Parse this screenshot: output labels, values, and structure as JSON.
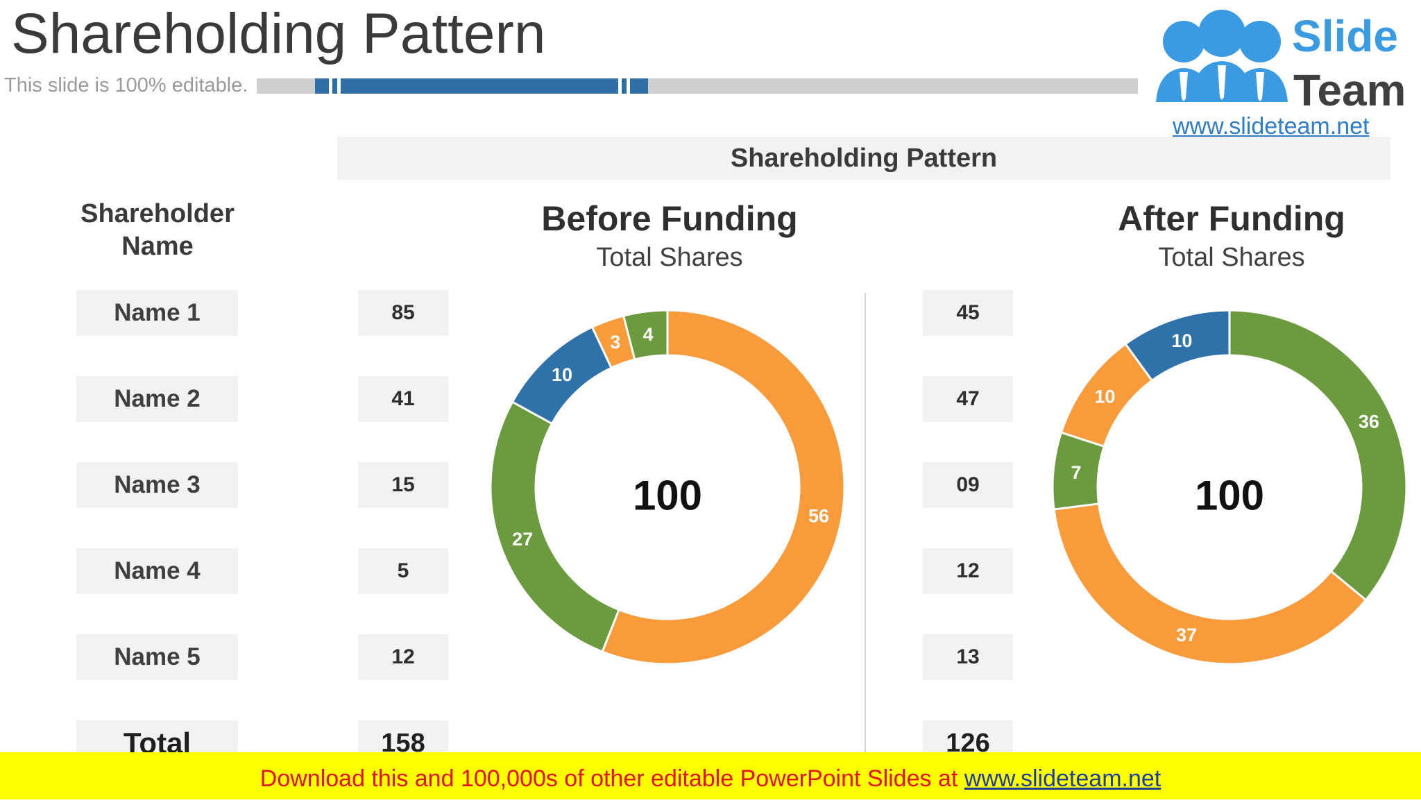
{
  "header": {
    "title": "Shareholding Pattern",
    "subtitle": "This slide is 100% editable."
  },
  "logo": {
    "line1": "Slide",
    "line2": "Team",
    "url": "www.slideteam.net"
  },
  "section_title": "Shareholding Pattern",
  "table": {
    "column_header": "Shareholder Name",
    "names": [
      "Name 1",
      "Name 2",
      "Name 3",
      "Name 4",
      "Name 5"
    ],
    "total_label": "Total",
    "before_values": [
      "85",
      "41",
      "15",
      "5",
      "12"
    ],
    "before_total": "158",
    "after_values": [
      "45",
      "47",
      "09",
      "12",
      "13"
    ],
    "after_total": "126"
  },
  "colors": {
    "orange": "#f99a3b",
    "green": "#6b9a3f",
    "blue": "#2f72aa",
    "accent_bar": "#2f6ea7"
  },
  "chart_data": [
    {
      "type": "pie",
      "style": "donut",
      "title": "Before Funding",
      "subtitle": "Total Shares",
      "center_label": "100",
      "slices": [
        {
          "value": 56,
          "label": "56",
          "color": "#f99a3b"
        },
        {
          "value": 27,
          "label": "27",
          "color": "#6b9a3f"
        },
        {
          "value": 10,
          "label": "10",
          "color": "#2f72aa"
        },
        {
          "value": 3,
          "label": "3",
          "color": "#f99a3b"
        },
        {
          "value": 4,
          "label": "4",
          "color": "#6b9a3f"
        }
      ]
    },
    {
      "type": "pie",
      "style": "donut",
      "title": "After Funding",
      "subtitle": "Total Shares",
      "center_label": "100",
      "slices": [
        {
          "value": 36,
          "label": "36",
          "color": "#6b9a3f"
        },
        {
          "value": 37,
          "label": "37",
          "color": "#f99a3b"
        },
        {
          "value": 7,
          "label": "7",
          "color": "#6b9a3f"
        },
        {
          "value": 10,
          "label": "10",
          "color": "#f99a3b"
        },
        {
          "value": 10,
          "label": "10",
          "color": "#2f72aa"
        }
      ]
    }
  ],
  "footer": {
    "text": "Download this and 100,000s of other editable PowerPoint Slides at ",
    "link": "www.slideteam.net"
  }
}
